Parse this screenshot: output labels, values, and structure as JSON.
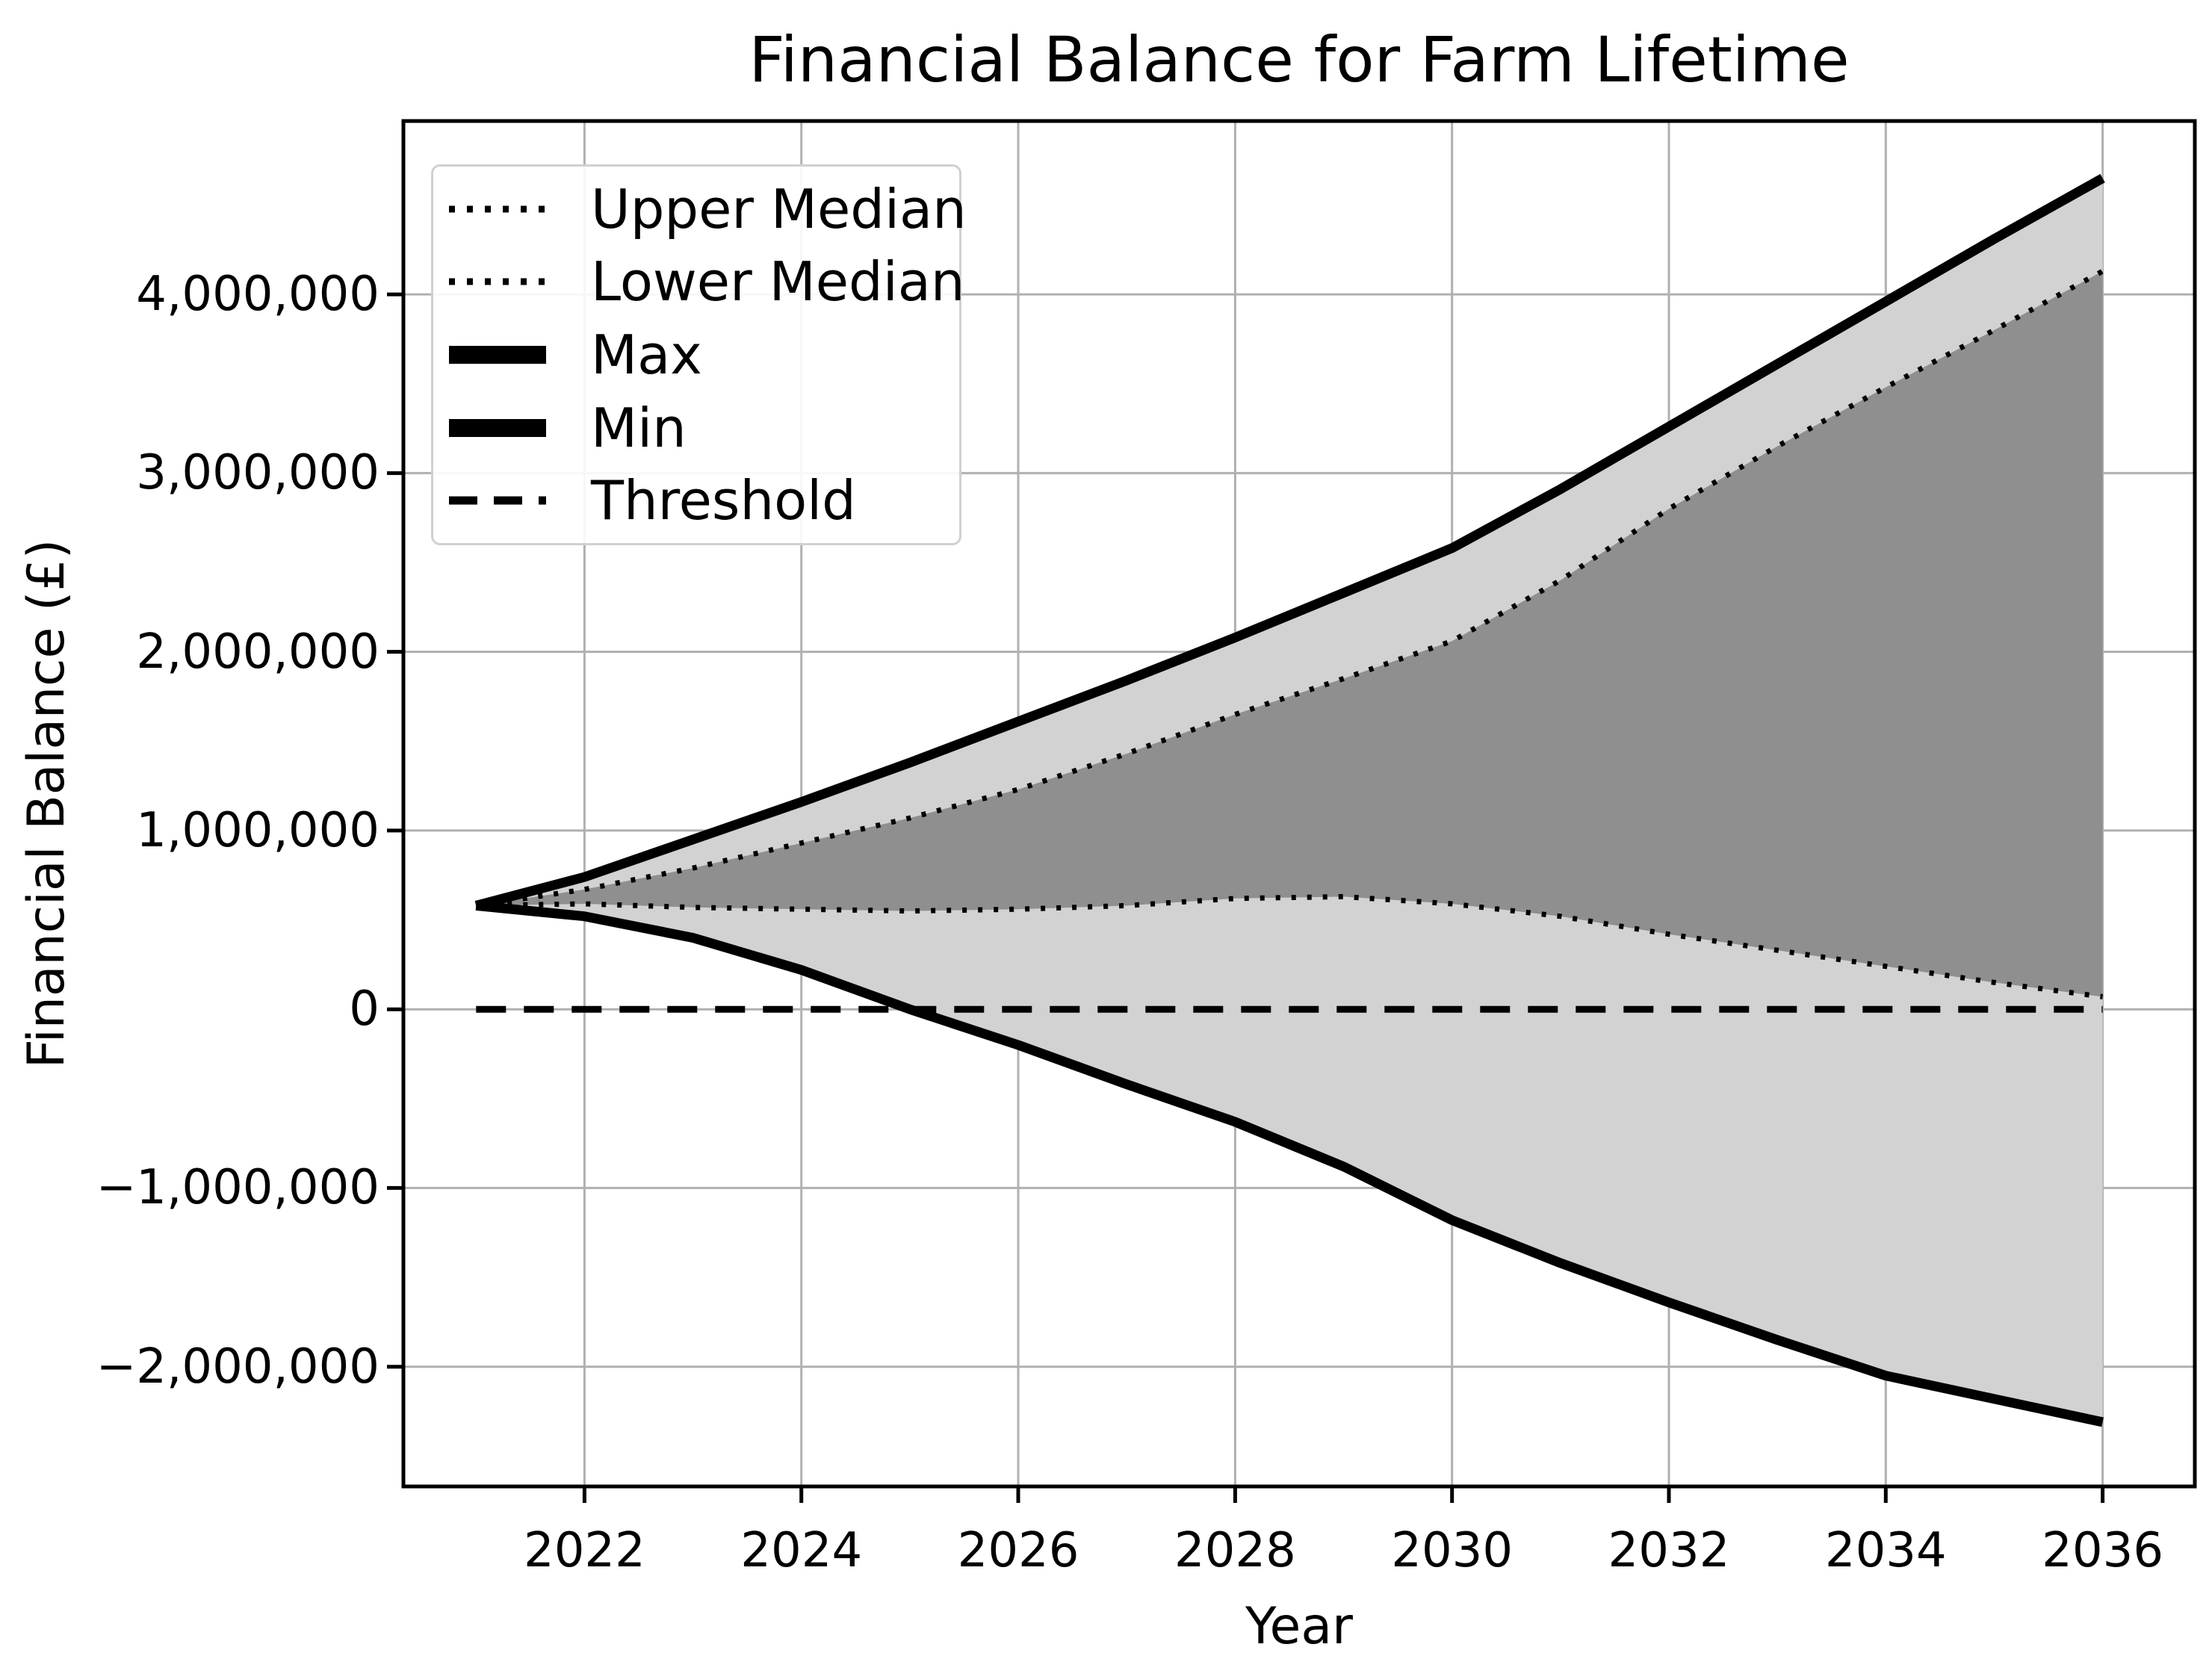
{
  "title": "Financial Balance for Farm Lifetime",
  "axes": {
    "xlabel": "Year",
    "ylabel": "Financial Balance (£)",
    "xlim": [
      2020.33,
      2036.85
    ],
    "ylim": [
      -2670000,
      4970000
    ],
    "grid": true,
    "x_ticks": [
      {
        "value": 2022,
        "label": "2022"
      },
      {
        "value": 2024,
        "label": "2024"
      },
      {
        "value": 2026,
        "label": "2026"
      },
      {
        "value": 2028,
        "label": "2028"
      },
      {
        "value": 2030,
        "label": "2030"
      },
      {
        "value": 2032,
        "label": "2032"
      },
      {
        "value": 2034,
        "label": "2034"
      },
      {
        "value": 2036,
        "label": "2036"
      }
    ],
    "y_ticks": [
      {
        "value": 4000000,
        "label": "4,000,000"
      },
      {
        "value": 3000000,
        "label": "3,000,000"
      },
      {
        "value": 2000000,
        "label": "2,000,000"
      },
      {
        "value": 1000000,
        "label": "1,000,000"
      },
      {
        "value": 0,
        "label": "0"
      },
      {
        "value": -1000000,
        "label": "−1,000,000"
      },
      {
        "value": -2000000,
        "label": "−2,000,000"
      }
    ]
  },
  "legend": {
    "position": "upper left",
    "items": [
      {
        "label": "Upper Median",
        "style": "dotted"
      },
      {
        "label": "Lower Median",
        "style": "dotted"
      },
      {
        "label": "Max",
        "style": "solid"
      },
      {
        "label": "Min",
        "style": "solid"
      },
      {
        "label": "Threshold",
        "style": "dashed"
      }
    ]
  },
  "colors": {
    "line": "#000000",
    "band_outer": "#d2d2d2",
    "band_inner": "#8f8f8f",
    "grid": "#b0b0b0",
    "legend_border": "#d0d0d0"
  },
  "chart_data": {
    "type": "line",
    "title": "Financial Balance for Farm Lifetime",
    "xlabel": "Year",
    "ylabel": "Financial Balance (£)",
    "x": [
      2021,
      2022,
      2023,
      2024,
      2025,
      2026,
      2027,
      2028,
      2029,
      2030,
      2031,
      2032,
      2033,
      2034,
      2035,
      2036
    ],
    "series": [
      {
        "name": "upper_median",
        "label": "Upper Median",
        "style": "dotted",
        "values": [
          580000,
          670000,
          790000,
          930000,
          1070000,
          1230000,
          1430000,
          1650000,
          1850000,
          2060000,
          2400000,
          2800000,
          3150000,
          3480000,
          3800000,
          4130000
        ]
      },
      {
        "name": "lower_median",
        "label": "Lower Median",
        "style": "dotted",
        "values": [
          580000,
          590000,
          570000,
          560000,
          550000,
          560000,
          580000,
          620000,
          630000,
          590000,
          520000,
          420000,
          330000,
          240000,
          150000,
          70000
        ]
      },
      {
        "name": "max",
        "label": "Max",
        "style": "solid",
        "values": [
          580000,
          740000,
          950000,
          1160000,
          1380000,
          1610000,
          1840000,
          2080000,
          2330000,
          2580000,
          2910000,
          3260000,
          3610000,
          3960000,
          4310000,
          4650000
        ]
      },
      {
        "name": "min",
        "label": "Min",
        "style": "solid",
        "values": [
          580000,
          520000,
          400000,
          220000,
          0,
          -200000,
          -420000,
          -630000,
          -880000,
          -1180000,
          -1420000,
          -1640000,
          -1850000,
          -2050000,
          -2180000,
          -2310000
        ]
      },
      {
        "name": "threshold",
        "label": "Threshold",
        "style": "dashed",
        "values": [
          0,
          0,
          0,
          0,
          0,
          0,
          0,
          0,
          0,
          0,
          0,
          0,
          0,
          0,
          0,
          0
        ]
      }
    ],
    "bands": [
      {
        "upper": "max",
        "lower": "min",
        "color_key": "band_outer"
      },
      {
        "upper": "upper_median",
        "lower": "lower_median",
        "color_key": "band_inner"
      }
    ],
    "legend_position": "upper left",
    "grid": true
  }
}
